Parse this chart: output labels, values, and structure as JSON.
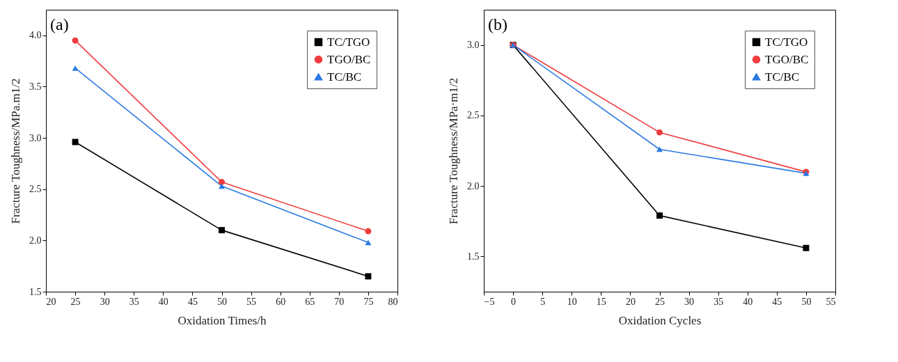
{
  "chart_data": [
    {
      "type": "line",
      "annotations": [
        "(a)"
      ],
      "xlabel": "Oxidation Times/h",
      "ylabel": "Fracture Toughness/MPa.m1/2",
      "x": [
        25,
        50,
        75
      ],
      "xlim": [
        20,
        80
      ],
      "xticks": [
        20,
        25,
        30,
        35,
        40,
        45,
        50,
        55,
        60,
        65,
        70,
        75,
        80
      ],
      "ylim": [
        1.5,
        4.25
      ],
      "yticks": [
        1.5,
        {
          "value": 2,
          "label": "2.0"
        },
        2.5,
        {
          "value": 3,
          "label": "3.0"
        },
        3.5,
        {
          "value": 4,
          "label": "4.0"
        }
      ],
      "legend": "top right",
      "grid": false,
      "series": [
        {
          "name": "TC/TGO",
          "color": "#000000",
          "marker": "square",
          "values": [
            2.96,
            2.1,
            1.65
          ]
        },
        {
          "name": "TGO/BC",
          "color": "#f03c3c",
          "marker": "circle",
          "values": [
            3.95,
            2.57,
            2.09
          ]
        },
        {
          "name": "TC/BC",
          "color": "#2a7ae2",
          "marker": "triangle",
          "values": [
            3.68,
            2.53,
            1.98
          ]
        }
      ]
    },
    {
      "type": "line",
      "annotations": [
        "(b)"
      ],
      "xlabel": "Oxidation Cycles",
      "ylabel": "Fracture Toughness/MPa·m1/2",
      "x": [
        0,
        25,
        50
      ],
      "xlim": [
        -5,
        55
      ],
      "xticks": [
        -5,
        0,
        5,
        10,
        15,
        20,
        25,
        30,
        35,
        40,
        45,
        50,
        55
      ],
      "ylim": [
        1.25,
        3.25
      ],
      "yticks": [
        1.5,
        {
          "value": 2,
          "label": "2.0"
        },
        2.5,
        {
          "value": 3,
          "label": "3.0"
        }
      ],
      "legend": "top right",
      "grid": false,
      "series": [
        {
          "name": "TC/TGO",
          "color": "#000000",
          "marker": "square",
          "values": [
            3.0,
            1.79,
            1.56
          ]
        },
        {
          "name": "TGO/BC",
          "color": "#f03c3c",
          "marker": "circle",
          "values": [
            3.0,
            2.38,
            2.1
          ]
        },
        {
          "name": "TC/BC",
          "color": "#2a7ae2",
          "marker": "triangle",
          "values": [
            3.0,
            2.26,
            2.09
          ]
        }
      ]
    }
  ]
}
